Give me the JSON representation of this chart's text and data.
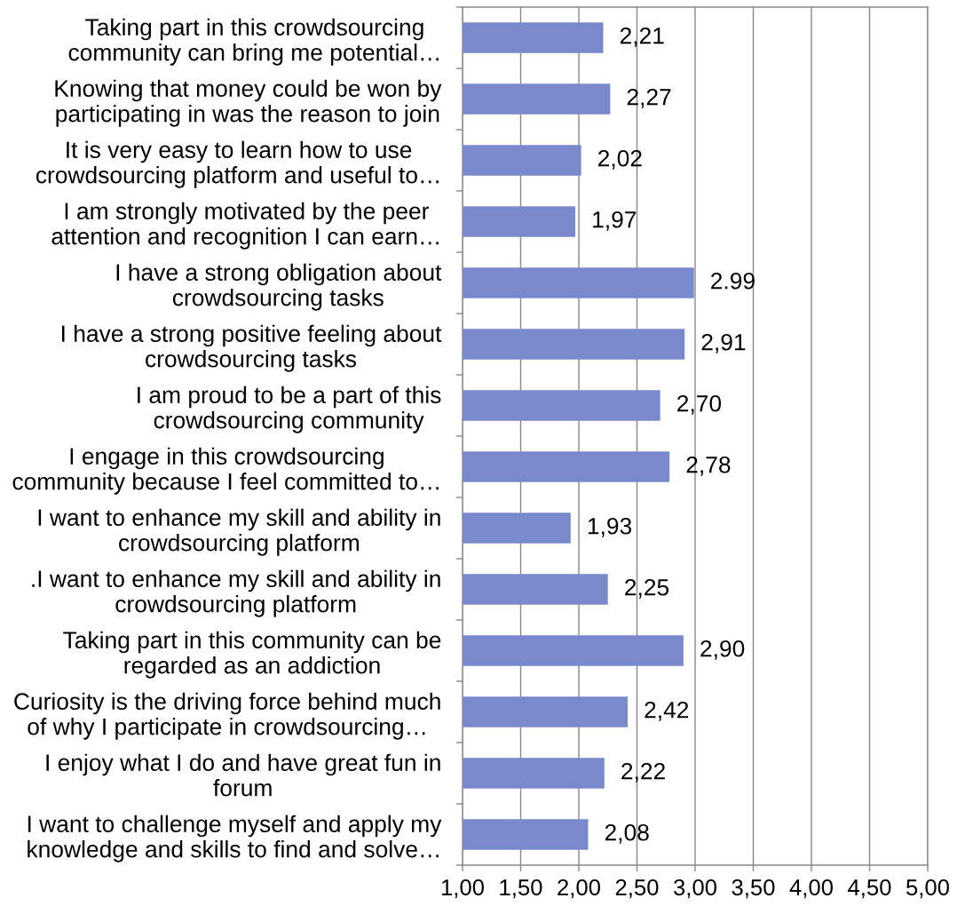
{
  "chart_data": {
    "type": "bar",
    "orientation": "horizontal",
    "categories": [
      "Taking part in this crowdsourcing\ncommunity can bring me potential…",
      "Knowing that money could be won by\nparticipating in was the reason to join",
      "It is very easy to learn how to use\ncrowdsourcing platform and useful to…",
      "I am strongly motivated by the peer\nattention and recognition I can earn…",
      "I have a strong obligation about\ncrowdsourcing tasks",
      "I have a strong positive feeling about\ncrowdsourcing tasks",
      "I am proud to be a part of this\ncrowdsourcing community",
      "I engage in this crowdsourcing\ncommunity because I feel committed to…",
      "I want to enhance my skill and ability in\ncrowdsourcing platform",
      ".I want to enhance my skill and ability in\ncrowdsourcing platform",
      "Taking part in this community can be\nregarded as an addiction",
      "Curiosity is the driving force behind much\nof why I participate in crowdsourcing…",
      "I enjoy what I do and have great fun in\nforum",
      "I want to challenge myself and apply my\nknowledge and skills to find and solve…"
    ],
    "values": [
      2.21,
      2.27,
      2.02,
      1.97,
      2.99,
      2.91,
      2.7,
      2.78,
      1.93,
      2.25,
      2.9,
      2.42,
      2.22,
      2.08
    ],
    "value_labels": [
      "2,21",
      "2,27",
      "2,02",
      "1,97",
      "2.99",
      "2,91",
      "2,70",
      "2,78",
      "1,93",
      "2,25",
      "2,90",
      "2,42",
      "2,22",
      "2,08"
    ],
    "color": "#7a89cc",
    "xlim": [
      1,
      5
    ],
    "xticks": [
      {
        "value": 1,
        "label": "1,00"
      },
      {
        "value": 1.5,
        "label": "1,50"
      },
      {
        "value": 2,
        "label": "2,00"
      },
      {
        "value": 2.5,
        "label": "2,50"
      },
      {
        "value": 3,
        "label": "3,00"
      },
      {
        "value": 3.5,
        "label": "3,50"
      },
      {
        "value": 4,
        "label": "4,00"
      },
      {
        "value": 4.5,
        "label": "4,50"
      },
      {
        "value": 5,
        "label": "5,00"
      }
    ],
    "grid": "x"
  }
}
